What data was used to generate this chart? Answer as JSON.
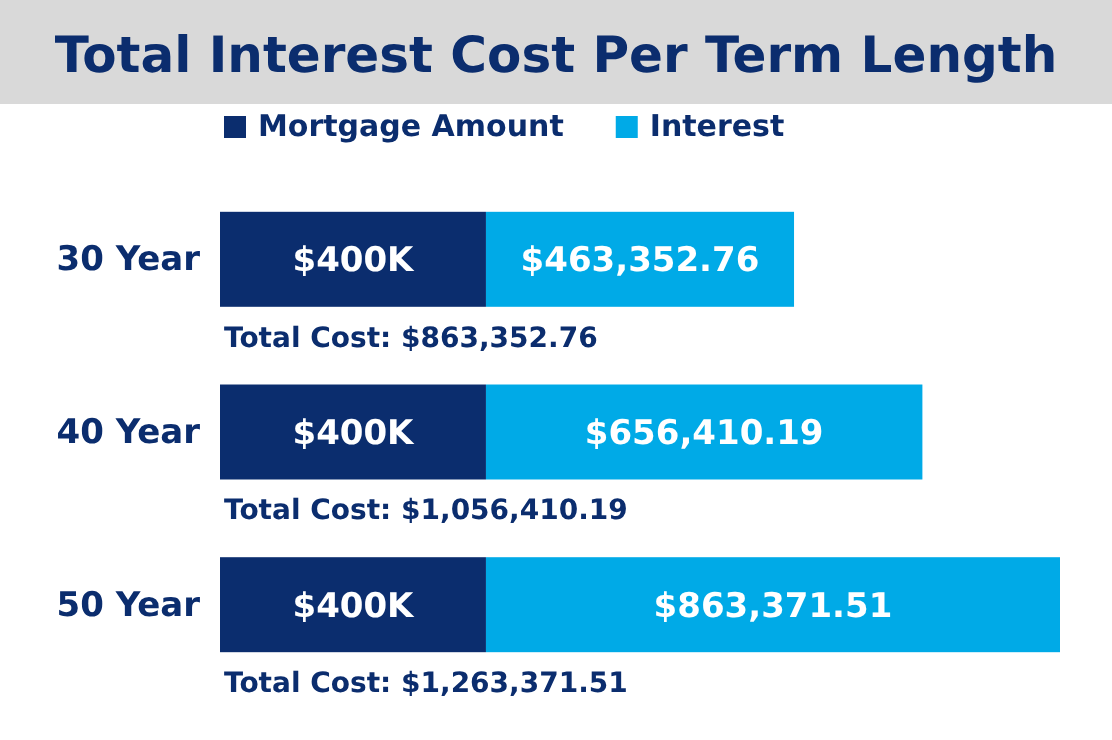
{
  "chart_data": {
    "type": "bar",
    "orientation": "horizontal",
    "stacked": true,
    "title": "Total Interest Cost Per Term Length",
    "categories": [
      "30 Year",
      "40 Year",
      "50 Year"
    ],
    "series": [
      {
        "name": "Mortgage Amount",
        "color": "#0b2d6e",
        "values": [
          400000,
          400000,
          400000
        ],
        "value_labels": [
          "$400K",
          "$400K",
          "$400K"
        ]
      },
      {
        "name": "Interest",
        "color": "#00aae7",
        "values": [
          463352.76,
          656410.19,
          863371.51
        ],
        "value_labels": [
          "$463,352.76",
          "$656,410.19",
          "$863,371.51"
        ]
      }
    ],
    "totals": [
      "Total Cost: $863,352.76",
      "Total Cost: $1,056,410.19",
      "Total Cost: $1,263,371.51"
    ],
    "legend": "top",
    "tick_labels": "y",
    "grid": false
  }
}
